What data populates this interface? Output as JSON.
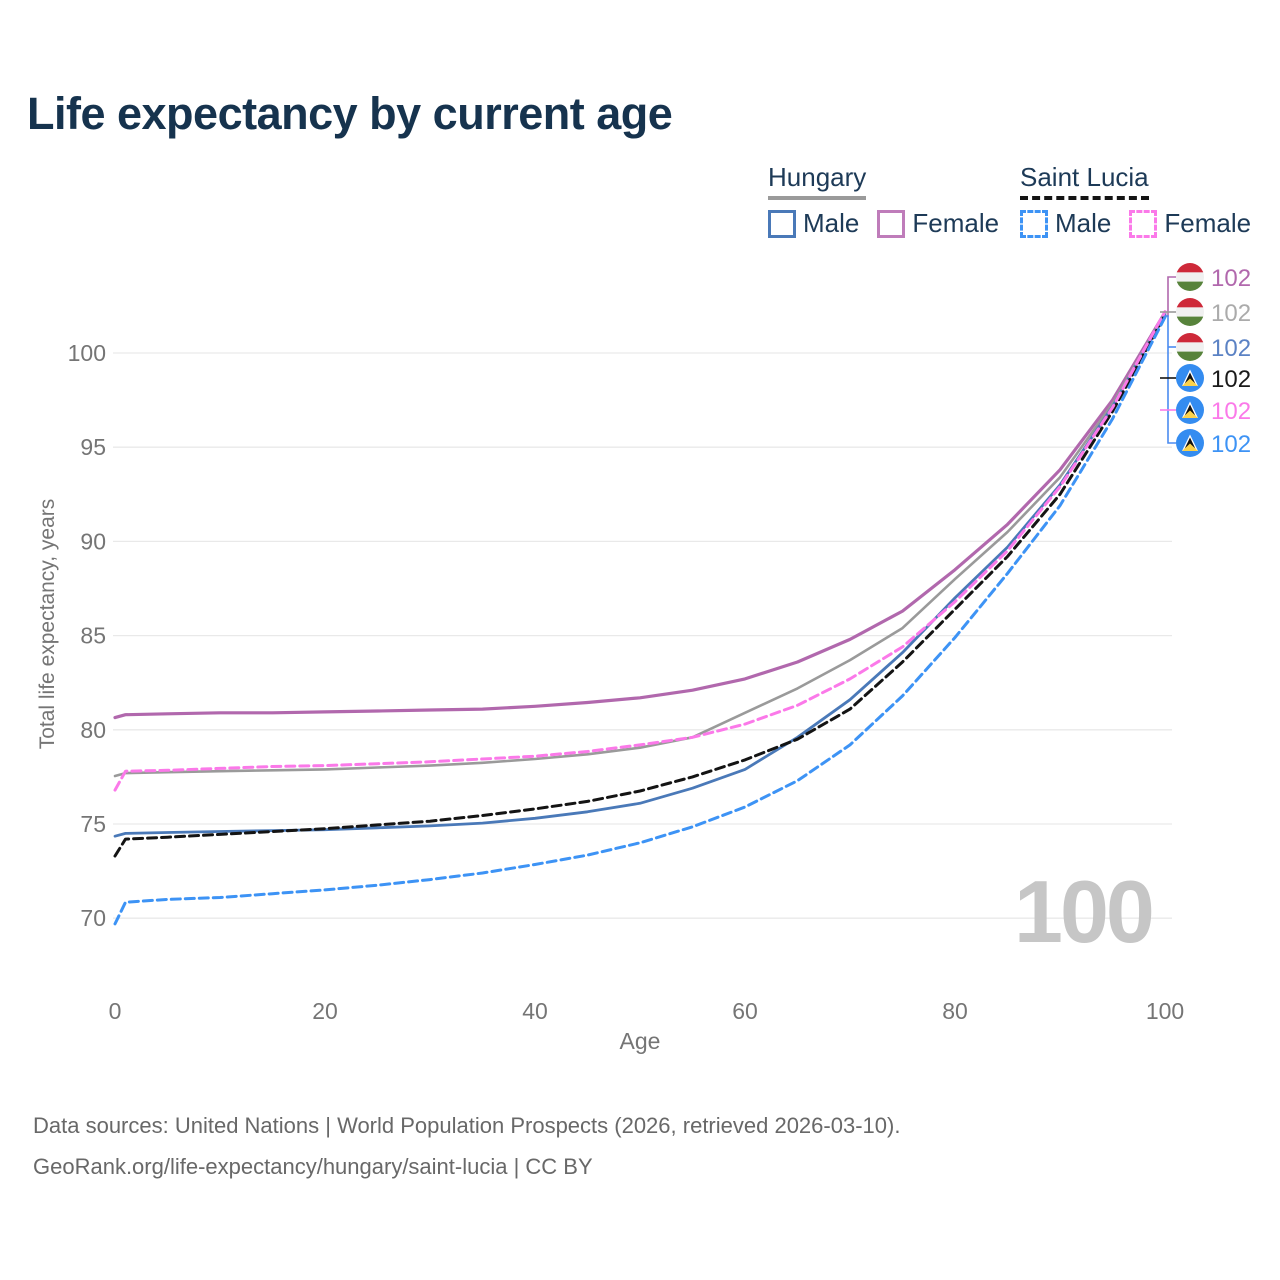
{
  "title": "Life expectancy by current age",
  "colors": {
    "title": "#16334e",
    "axis_text": "#757575",
    "grid": "#e9e9e9",
    "watermark": "#c6c6c6",
    "footer_text": "#686868",
    "legend_text": "#1d3a57",
    "leader_blue": "#4b8cf0"
  },
  "legend": {
    "groups": [
      {
        "name": "Hungary",
        "underline_color": "#9a9a9a",
        "underline_style": "solid",
        "items": [
          {
            "label": "Male",
            "color": "#4a79b8",
            "style": "solid"
          },
          {
            "label": "Female",
            "color": "#bf7cba",
            "style": "solid"
          }
        ]
      },
      {
        "name": "Saint Lucia",
        "underline_color": "#141414",
        "underline_style": "dashed",
        "items": [
          {
            "label": "Male",
            "color": "#3d93f5",
            "style": "dashed"
          },
          {
            "label": "Female",
            "color": "#fb79e9",
            "style": "dashed"
          }
        ]
      }
    ]
  },
  "chart_data": {
    "type": "line",
    "title": "Life expectancy by current age",
    "xlabel": "Age",
    "ylabel": "Total life expectancy, years",
    "xticks": [
      0,
      20,
      40,
      60,
      80,
      100
    ],
    "yticks": [
      70,
      75,
      80,
      85,
      90,
      95,
      100
    ],
    "xlim": [
      0,
      100
    ],
    "ylim": [
      68.5,
      103.5
    ],
    "grid": true,
    "legend_position": "top-right",
    "x": [
      0,
      1,
      5,
      10,
      15,
      20,
      25,
      30,
      35,
      40,
      45,
      50,
      55,
      60,
      65,
      70,
      75,
      80,
      85,
      90,
      95,
      100
    ],
    "series": [
      {
        "id": "hungary-female",
        "name": "Hungary Female",
        "country": "Hungary",
        "sex": "Female",
        "color": "#b168ad",
        "dash": null,
        "width": 3.2,
        "values": [
          80.65,
          80.8,
          80.85,
          80.9,
          80.9,
          80.95,
          81.0,
          81.05,
          81.1,
          81.25,
          81.45,
          81.7,
          82.1,
          82.7,
          83.6,
          84.8,
          86.3,
          88.5,
          90.9,
          93.8,
          97.5,
          102.15
        ]
      },
      {
        "id": "hungary-total",
        "name": "Hungary",
        "country": "Hungary",
        "sex": "Both",
        "color": "#9a9a9a",
        "dash": null,
        "width": 2.6,
        "values": [
          77.55,
          77.7,
          77.75,
          77.8,
          77.85,
          77.9,
          78.0,
          78.1,
          78.25,
          78.45,
          78.7,
          79.05,
          79.6,
          80.9,
          82.2,
          83.7,
          85.4,
          88.0,
          90.5,
          93.4,
          97.3,
          102.1
        ]
      },
      {
        "id": "hungary-male",
        "name": "Hungary Male",
        "country": "Hungary",
        "sex": "Male",
        "color": "#4a79b8",
        "dash": null,
        "width": 2.8,
        "values": [
          74.35,
          74.5,
          74.55,
          74.6,
          74.65,
          74.7,
          74.8,
          74.9,
          75.05,
          75.3,
          75.65,
          76.1,
          76.9,
          77.9,
          79.6,
          81.6,
          84.1,
          87.0,
          89.7,
          93.0,
          97.15,
          102.05
        ]
      },
      {
        "id": "saint-lucia-total",
        "name": "Saint Lucia",
        "country": "Saint Lucia",
        "sex": "Both",
        "color": "#141414",
        "dash": "9 5",
        "width": 3,
        "values": [
          73.3,
          74.2,
          74.3,
          74.45,
          74.6,
          74.75,
          74.95,
          75.15,
          75.45,
          75.8,
          76.2,
          76.75,
          77.5,
          78.4,
          79.5,
          81.1,
          83.6,
          86.4,
          89.2,
          92.5,
          96.9,
          102.0
        ]
      },
      {
        "id": "saint-lucia-female",
        "name": "Saint Lucia Female",
        "country": "Saint Lucia",
        "sex": "Female",
        "color": "#fb79e9",
        "dash": "9 5",
        "width": 3,
        "values": [
          76.8,
          77.8,
          77.85,
          77.95,
          78.05,
          78.1,
          78.2,
          78.3,
          78.45,
          78.6,
          78.85,
          79.2,
          79.6,
          80.3,
          81.3,
          82.7,
          84.4,
          86.8,
          89.5,
          92.9,
          97.1,
          102.2
        ]
      },
      {
        "id": "saint-lucia-male",
        "name": "Saint Lucia Male",
        "country": "Saint Lucia",
        "sex": "Male",
        "color": "#3d93f5",
        "dash": "9 5",
        "width": 3,
        "values": [
          69.7,
          70.85,
          71.0,
          71.1,
          71.3,
          71.5,
          71.75,
          72.05,
          72.4,
          72.85,
          73.35,
          74.0,
          74.85,
          75.9,
          77.3,
          79.2,
          81.8,
          84.9,
          88.3,
          91.9,
          96.5,
          101.9
        ]
      }
    ]
  },
  "end_labels": [
    {
      "value": "102",
      "flag": "hungary",
      "series": "hungary-female",
      "color": "#b168ad"
    },
    {
      "value": "102",
      "flag": "hungary",
      "series": "hungary-total",
      "color": "#ababab"
    },
    {
      "value": "102",
      "flag": "hungary",
      "series": "hungary-male",
      "color": "#5b82c4"
    },
    {
      "value": "102",
      "flag": "saint-lucia",
      "series": "saint-lucia-total",
      "color": "#1a1a1a"
    },
    {
      "value": "102",
      "flag": "saint-lucia",
      "series": "saint-lucia-female",
      "color": "#fb79e9"
    },
    {
      "value": "102",
      "flag": "saint-lucia",
      "series": "saint-lucia-male",
      "color": "#3d93f5"
    }
  ],
  "watermark": "100",
  "footer": {
    "line1": "Data sources: United Nations | World Population Prospects (2026, retrieved 2026-03-10).",
    "line2": "GeoRank.org/life-expectancy/hungary/saint-lucia | CC BY"
  },
  "flag_colors": {
    "hungary": {
      "red": "#ce2939",
      "white": "#f0f0f0",
      "green": "#57833b"
    },
    "saint_lucia": {
      "blue": "#348cf0",
      "white": "#ffffff",
      "black": "#111111",
      "yellow": "#fcd24a"
    }
  }
}
